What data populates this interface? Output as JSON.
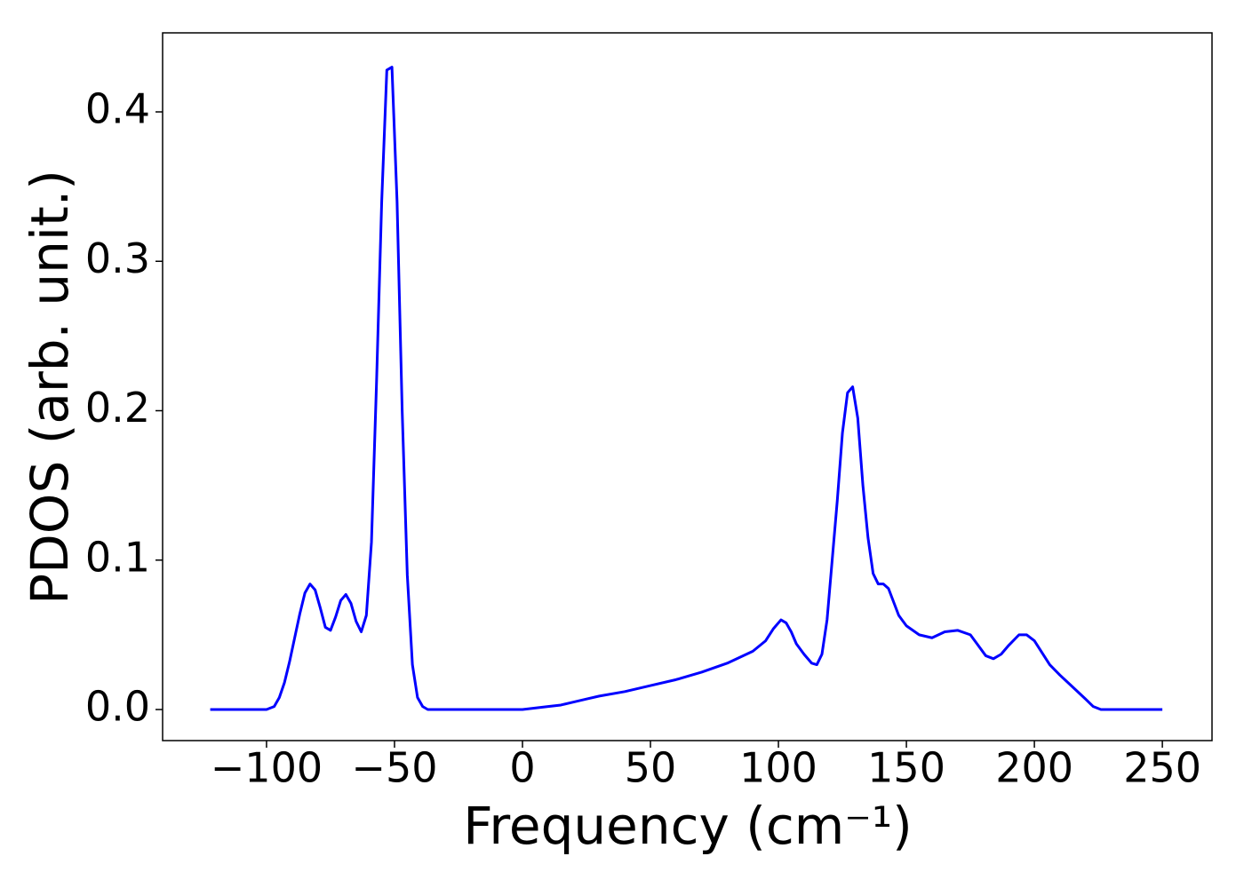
{
  "chart_data": {
    "type": "line",
    "xlabel": "Frequency (cm⁻¹)",
    "ylabel": "PDOS (arb. unit.)",
    "xlim": [
      -140.6,
      269.4
    ],
    "ylim": [
      -0.0208,
      0.4529
    ],
    "xticks": [
      {
        "value": -100,
        "label": "−100"
      },
      {
        "value": -50,
        "label": "−50"
      },
      0,
      50,
      100,
      150,
      200,
      250
    ],
    "yticks": [
      {
        "value": 0,
        "label": "0.0"
      },
      0.1,
      0.2,
      0.3,
      0.4
    ],
    "series": [
      {
        "color": "#0000ff",
        "x": [
          -122,
          -100,
          -97,
          -95,
          -93,
          -91,
          -89,
          -87,
          -85,
          -83,
          -81,
          -79,
          -77,
          -75,
          -73,
          -71,
          -69,
          -67,
          -65,
          -63,
          -61,
          -59,
          -57,
          -55,
          -53,
          -51,
          -49,
          -47,
          -45,
          -43,
          -41,
          -39,
          -37,
          0,
          10,
          15,
          20,
          25,
          30,
          40,
          50,
          60,
          70,
          80,
          90,
          95,
          98,
          101,
          103,
          105,
          107,
          110,
          113,
          115,
          117,
          119,
          121,
          123,
          125,
          127,
          129,
          131,
          133,
          135,
          137,
          139,
          141,
          143,
          145,
          147,
          150,
          155,
          160,
          165,
          170,
          175,
          178,
          181,
          184,
          187,
          190,
          194,
          197,
          200,
          203,
          206,
          210,
          215,
          220,
          223,
          226,
          250
        ],
        "values": [
          0,
          0,
          0.002,
          0.008,
          0.018,
          0.032,
          0.048,
          0.064,
          0.078,
          0.084,
          0.08,
          0.068,
          0.055,
          0.053,
          0.062,
          0.073,
          0.077,
          0.071,
          0.059,
          0.052,
          0.063,
          0.112,
          0.22,
          0.34,
          0.428,
          0.43,
          0.34,
          0.2,
          0.09,
          0.03,
          0.008,
          0.002,
          0,
          0,
          0.002,
          0.003,
          0.005,
          0.007,
          0.009,
          0.012,
          0.016,
          0.02,
          0.025,
          0.031,
          0.039,
          0.046,
          0.054,
          0.06,
          0.058,
          0.052,
          0.044,
          0.037,
          0.031,
          0.03,
          0.037,
          0.06,
          0.1,
          0.14,
          0.185,
          0.212,
          0.216,
          0.195,
          0.15,
          0.115,
          0.091,
          0.084,
          0.084,
          0.081,
          0.072,
          0.063,
          0.056,
          0.05,
          0.048,
          0.052,
          0.053,
          0.05,
          0.043,
          0.036,
          0.034,
          0.037,
          0.043,
          0.05,
          0.05,
          0.046,
          0.038,
          0.03,
          0.023,
          0.015,
          0.007,
          0.002,
          0,
          0
        ]
      }
    ]
  }
}
